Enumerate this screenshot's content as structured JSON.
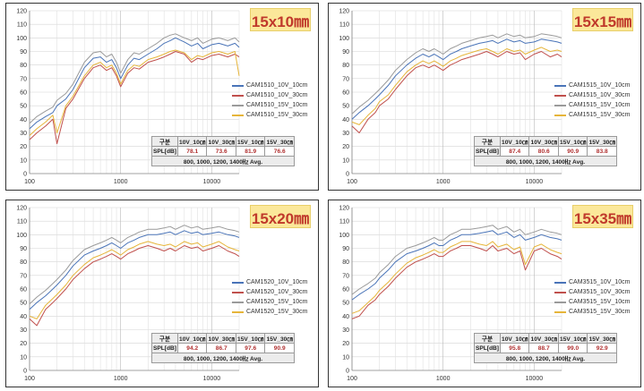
{
  "panels": [
    {
      "label": "15x10㎜",
      "legend": [
        "CAM1510_10V_10cm",
        "CAM1510_10V_30cm",
        "CAM1510_15V_10cm",
        "CAM1510_15V_30cm"
      ],
      "table": {
        "headers": [
          "구분",
          "10V_10㎝",
          "10V_30㎝",
          "15V_10㎝",
          "15V_30㎝"
        ],
        "row_label": "SPL[dB]",
        "values": [
          "78.1",
          "73.6",
          "81.9",
          "76.6"
        ],
        "note": "800, 1000, 1200, 1400㎐ Avg."
      }
    },
    {
      "label": "15x15㎜",
      "legend": [
        "CAM1515_10V_10cm",
        "CAM1515_10V_30cm",
        "CAM1515_15V_10cm",
        "CAM1515_15V_30cm"
      ],
      "table": {
        "headers": [
          "구분",
          "10V_10㎝",
          "10V_30㎝",
          "15V_10㎝",
          "15V_30㎝"
        ],
        "row_label": "SPL[dB]",
        "values": [
          "87.4",
          "80.6",
          "90.9",
          "83.8"
        ],
        "note": "800, 1000, 1200, 1400㎐ Avg."
      }
    },
    {
      "label": "15x20㎜",
      "legend": [
        "CAM1520_10V_10cm",
        "CAM1520_10V_30cm",
        "CAM1520_15V_10cm",
        "CAM1520_15V_30cm"
      ],
      "table": {
        "headers": [
          "구분",
          "10V_10㎝",
          "10V_30㎝",
          "15V_10㎝",
          "15V_30㎝"
        ],
        "row_label": "SPL[dB]",
        "values": [
          "94.2",
          "86.7",
          "97.6",
          "90.9"
        ],
        "note": "800, 1000, 1200, 1400㎐ Avg."
      }
    },
    {
      "label": "15x35㎜",
      "legend": [
        "CAM3515_10V_10cm",
        "CAM3515_10V_30cm",
        "CAM3515_15V_10cm",
        "CAM3515_15V_30cm"
      ],
      "table": {
        "headers": [
          "구분",
          "10V_10㎝",
          "10V_30㎝",
          "15V_10㎝",
          "15V_30㎝"
        ],
        "row_label": "SPL[dB]",
        "values": [
          "95.8",
          "88.7",
          "99.0",
          "92.9"
        ],
        "note": "800, 1000, 1200, 1400㎐ Avg."
      }
    }
  ],
  "series_colors": [
    "#4a74b8",
    "#c0504d",
    "#9a9a9a",
    "#e6b53a"
  ],
  "chart_data": [
    {
      "type": "line",
      "x_scale": "log",
      "xlim": [
        100,
        20000
      ],
      "ylim": [
        0,
        120
      ],
      "yticks": [
        0,
        10,
        20,
        30,
        40,
        50,
        60,
        70,
        80,
        90,
        100,
        110,
        120
      ],
      "xticks": [
        100,
        1000,
        10000
      ],
      "grid": true,
      "legend": "right",
      "x": [
        100,
        120,
        150,
        180,
        200,
        250,
        300,
        400,
        500,
        600,
        700,
        800,
        900,
        1000,
        1200,
        1400,
        1600,
        2000,
        2500,
        3000,
        3500,
        4000,
        5000,
        6000,
        7000,
        8000,
        10000,
        12000,
        15000,
        18000,
        20000
      ],
      "series": [
        {
          "name": "CAM1510_10V_10cm",
          "values": [
            33,
            38,
            42,
            45,
            50,
            55,
            62,
            78,
            85,
            86,
            82,
            84,
            78,
            70,
            80,
            85,
            84,
            88,
            92,
            96,
            98,
            100,
            97,
            94,
            96,
            92,
            95,
            96,
            94,
            96,
            93
          ]
        },
        {
          "name": "CAM1510_10V_30cm",
          "values": [
            25,
            30,
            35,
            40,
            22,
            48,
            55,
            70,
            78,
            80,
            76,
            78,
            72,
            64,
            74,
            78,
            77,
            82,
            84,
            86,
            88,
            90,
            88,
            82,
            85,
            84,
            87,
            88,
            86,
            88,
            86
          ]
        },
        {
          "name": "CAM1510_15V_10cm",
          "values": [
            37,
            42,
            46,
            49,
            54,
            59,
            66,
            82,
            89,
            90,
            86,
            88,
            82,
            74,
            84,
            89,
            88,
            92,
            96,
            100,
            102,
            103,
            100,
            98,
            100,
            96,
            99,
            100,
            98,
            100,
            97
          ]
        },
        {
          "name": "CAM1510_15V_30cm",
          "values": [
            28,
            33,
            38,
            43,
            30,
            50,
            57,
            72,
            80,
            82,
            78,
            80,
            74,
            66,
            76,
            80,
            79,
            84,
            86,
            88,
            90,
            91,
            89,
            84,
            87,
            86,
            89,
            90,
            88,
            90,
            72
          ]
        }
      ]
    },
    {
      "type": "line",
      "x_scale": "log",
      "xlim": [
        100,
        20000
      ],
      "ylim": [
        0,
        120
      ],
      "yticks": [
        0,
        10,
        20,
        30,
        40,
        50,
        60,
        70,
        80,
        90,
        100,
        110,
        120
      ],
      "xticks": [
        100,
        1000,
        10000
      ],
      "grid": true,
      "legend": "right",
      "x": [
        100,
        120,
        150,
        180,
        200,
        250,
        300,
        400,
        500,
        600,
        700,
        800,
        900,
        1000,
        1200,
        1400,
        1600,
        2000,
        2500,
        3000,
        3500,
        4000,
        5000,
        6000,
        7000,
        8000,
        10000,
        12000,
        15000,
        18000,
        20000
      ],
      "series": [
        {
          "name": "CAM1515_10V_10cm",
          "values": [
            40,
            45,
            50,
            55,
            58,
            65,
            72,
            80,
            85,
            88,
            86,
            88,
            86,
            84,
            88,
            90,
            92,
            94,
            96,
            97,
            98,
            96,
            99,
            97,
            98,
            96,
            97,
            99,
            98,
            97,
            96
          ]
        },
        {
          "name": "CAM1515_10V_30cm",
          "values": [
            35,
            30,
            40,
            45,
            50,
            55,
            62,
            72,
            78,
            80,
            78,
            80,
            78,
            76,
            80,
            82,
            84,
            86,
            88,
            90,
            88,
            86,
            90,
            88,
            89,
            84,
            88,
            90,
            86,
            88,
            86
          ]
        },
        {
          "name": "CAM1515_15V_10cm",
          "values": [
            44,
            49,
            54,
            59,
            62,
            69,
            76,
            84,
            89,
            92,
            90,
            92,
            90,
            88,
            92,
            94,
            96,
            98,
            100,
            101,
            102,
            100,
            103,
            101,
            102,
            100,
            101,
            103,
            102,
            101,
            100
          ]
        },
        {
          "name": "CAM1515_15V_30cm",
          "values": [
            38,
            36,
            43,
            48,
            53,
            58,
            65,
            75,
            80,
            83,
            81,
            83,
            81,
            79,
            83,
            85,
            87,
            89,
            91,
            92,
            90,
            88,
            92,
            90,
            91,
            88,
            91,
            93,
            90,
            91,
            90
          ]
        }
      ]
    },
    {
      "type": "line",
      "x_scale": "log",
      "xlim": [
        100,
        20000
      ],
      "ylim": [
        0,
        120
      ],
      "yticks": [
        0,
        10,
        20,
        30,
        40,
        50,
        60,
        70,
        80,
        90,
        100,
        110,
        120
      ],
      "xticks": [
        100,
        1000,
        10000
      ],
      "grid": true,
      "legend": "right",
      "x": [
        100,
        120,
        150,
        180,
        200,
        250,
        300,
        400,
        500,
        600,
        700,
        800,
        900,
        1000,
        1200,
        1400,
        1600,
        2000,
        2500,
        3000,
        3500,
        4000,
        5000,
        6000,
        7000,
        8000,
        10000,
        12000,
        15000,
        18000,
        20000
      ],
      "series": [
        {
          "name": "CAM1520_10V_10cm",
          "values": [
            45,
            50,
            55,
            60,
            63,
            70,
            77,
            85,
            88,
            90,
            92,
            94,
            92,
            90,
            94,
            96,
            98,
            100,
            100,
            101,
            102,
            100,
            103,
            101,
            102,
            100,
            101,
            102,
            100,
            99,
            98
          ]
        },
        {
          "name": "CAM1520_10V_30cm",
          "values": [
            38,
            33,
            45,
            50,
            53,
            60,
            67,
            75,
            80,
            82,
            84,
            86,
            84,
            82,
            86,
            88,
            90,
            92,
            90,
            88,
            90,
            88,
            92,
            90,
            91,
            88,
            90,
            92,
            88,
            86,
            84
          ]
        },
        {
          "name": "CAM1520_15V_10cm",
          "values": [
            49,
            54,
            59,
            64,
            67,
            74,
            81,
            89,
            92,
            94,
            96,
            98,
            96,
            94,
            98,
            100,
            102,
            104,
            104,
            105,
            106,
            104,
            107,
            105,
            106,
            104,
            105,
            106,
            104,
            103,
            102
          ]
        },
        {
          "name": "CAM1520_15V_30cm",
          "values": [
            40,
            38,
            48,
            53,
            56,
            63,
            70,
            78,
            83,
            85,
            87,
            89,
            87,
            85,
            89,
            91,
            93,
            95,
            93,
            92,
            93,
            91,
            95,
            93,
            94,
            91,
            93,
            95,
            91,
            89,
            88
          ]
        }
      ]
    },
    {
      "type": "line",
      "x_scale": "log",
      "xlim": [
        100,
        20000
      ],
      "ylim": [
        0,
        120
      ],
      "yticks": [
        0,
        10,
        20,
        30,
        40,
        50,
        60,
        70,
        80,
        90,
        100,
        110,
        120
      ],
      "xticks": [
        100,
        1000,
        10000
      ],
      "grid": true,
      "legend": "right",
      "x": [
        100,
        120,
        150,
        180,
        200,
        250,
        300,
        400,
        500,
        600,
        700,
        800,
        900,
        1000,
        1200,
        1400,
        1600,
        2000,
        2500,
        3000,
        3500,
        4000,
        5000,
        6000,
        7000,
        8000,
        10000,
        12000,
        15000,
        18000,
        20000
      ],
      "series": [
        {
          "name": "CAM3515_10V_10cm",
          "values": [
            52,
            56,
            60,
            64,
            68,
            74,
            80,
            86,
            88,
            90,
            92,
            94,
            92,
            92,
            96,
            98,
            100,
            100,
            101,
            102,
            103,
            100,
            102,
            98,
            100,
            96,
            98,
            100,
            98,
            97,
            96
          ]
        },
        {
          "name": "CAM3515_10V_30cm",
          "values": [
            38,
            40,
            48,
            52,
            56,
            62,
            68,
            76,
            80,
            82,
            84,
            86,
            84,
            84,
            88,
            90,
            92,
            92,
            90,
            88,
            92,
            88,
            90,
            86,
            88,
            74,
            88,
            90,
            86,
            84,
            82
          ]
        },
        {
          "name": "CAM3515_15V_10cm",
          "values": [
            56,
            60,
            64,
            68,
            72,
            78,
            84,
            90,
            92,
            94,
            96,
            98,
            96,
            96,
            100,
            102,
            104,
            104,
            105,
            106,
            107,
            104,
            106,
            102,
            104,
            100,
            102,
            104,
            102,
            101,
            100
          ]
        },
        {
          "name": "CAM3515_15V_30cm",
          "values": [
            42,
            44,
            50,
            55,
            59,
            65,
            71,
            79,
            83,
            85,
            87,
            89,
            87,
            87,
            91,
            93,
            95,
            95,
            93,
            92,
            95,
            91,
            93,
            89,
            91,
            78,
            91,
            93,
            89,
            87,
            86
          ]
        }
      ]
    }
  ]
}
